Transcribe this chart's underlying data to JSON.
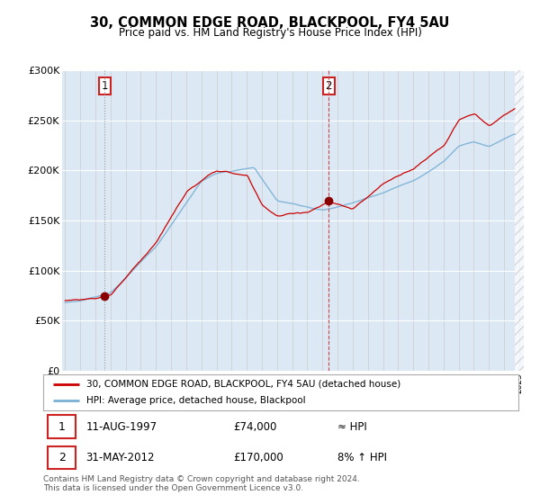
{
  "title": "30, COMMON EDGE ROAD, BLACKPOOL, FY4 5AU",
  "subtitle": "Price paid vs. HM Land Registry's House Price Index (HPI)",
  "ylim": [
    0,
    300000
  ],
  "yticks": [
    0,
    50000,
    100000,
    150000,
    200000,
    250000,
    300000
  ],
  "ytick_labels": [
    "£0",
    "£50K",
    "£100K",
    "£150K",
    "£200K",
    "£250K",
    "£300K"
  ],
  "sale1_date": 1997.62,
  "sale1_price": 74000,
  "sale2_date": 2012.42,
  "sale2_price": 170000,
  "line_color": "#cc0000",
  "hpi_color": "#7ab0d4",
  "bg_color": "#dce9f5",
  "legend_label1": "30, COMMON EDGE ROAD, BLACKPOOL, FY4 5AU (detached house)",
  "legend_label2": "HPI: Average price, detached house, Blackpool",
  "footer": "Contains HM Land Registry data © Crown copyright and database right 2024.\nThis data is licensed under the Open Government Licence v3.0.",
  "xmin": 1994.8,
  "xmax": 2025.3,
  "data_end": 2024.7
}
